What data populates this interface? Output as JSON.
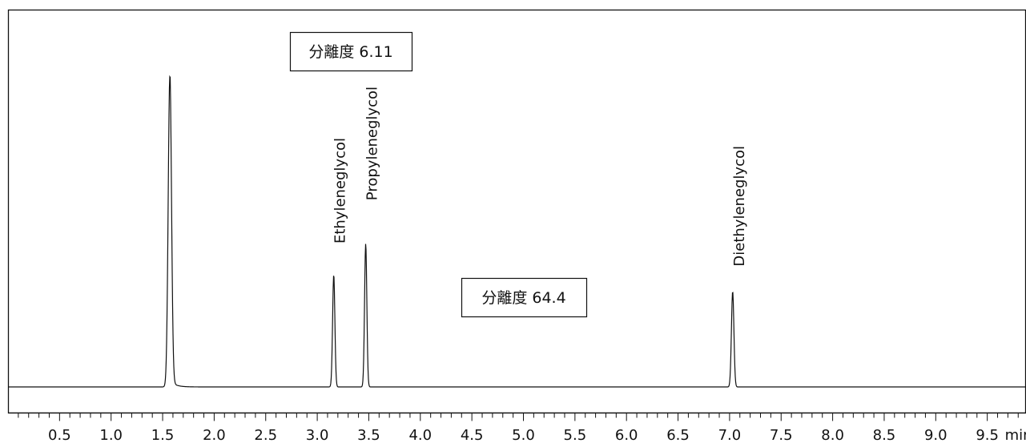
{
  "chart_data": {
    "type": "line",
    "xlim": [
      0.0,
      10.0
    ],
    "x_unit": "min",
    "xticks": [
      {
        "value": 0.5,
        "label": "0.5"
      },
      {
        "value": 1.0,
        "label": "1.0"
      },
      {
        "value": 1.5,
        "label": "1.5"
      },
      {
        "value": 2.0,
        "label": "2.0"
      },
      {
        "value": 2.5,
        "label": "2.5"
      },
      {
        "value": 3.0,
        "label": "3.0"
      },
      {
        "value": 3.5,
        "label": "3.5"
      },
      {
        "value": 4.0,
        "label": "4.0"
      },
      {
        "value": 4.5,
        "label": "4.5"
      },
      {
        "value": 5.0,
        "label": "5.0"
      },
      {
        "value": 5.5,
        "label": "5.5"
      },
      {
        "value": 6.0,
        "label": "6.0"
      },
      {
        "value": 6.5,
        "label": "6.5"
      },
      {
        "value": 7.0,
        "label": "7.0"
      },
      {
        "value": 7.5,
        "label": "7.5"
      },
      {
        "value": 8.0,
        "label": "8.0"
      },
      {
        "value": 8.5,
        "label": "8.5"
      },
      {
        "value": 9.0,
        "label": "9.0"
      },
      {
        "value": 9.5,
        "label": "9.5"
      }
    ],
    "minor_tick_step": 0.1,
    "ylim": [
      0,
      100
    ],
    "baseline": 0,
    "y_axis_visible": false,
    "grid": false,
    "line_color": "#111111",
    "peaks": [
      {
        "name": "",
        "retention_time": 1.57,
        "height": 130,
        "sigma": 0.016
      },
      {
        "name": "Ethyleneglycol",
        "retention_time": 3.16,
        "height": 47,
        "sigma": 0.011
      },
      {
        "name": "Propyleneglycol",
        "retention_time": 3.47,
        "height": 60,
        "sigma": 0.011
      },
      {
        "name": "Diethyleneglycol",
        "retention_time": 7.03,
        "height": 40,
        "sigma": 0.012
      }
    ],
    "annotations": [
      {
        "text": "分離度 6.11",
        "x": 3.3,
        "y": 88
      },
      {
        "text": "分離度 64.4",
        "x": 5.1,
        "y": 23
      }
    ]
  }
}
